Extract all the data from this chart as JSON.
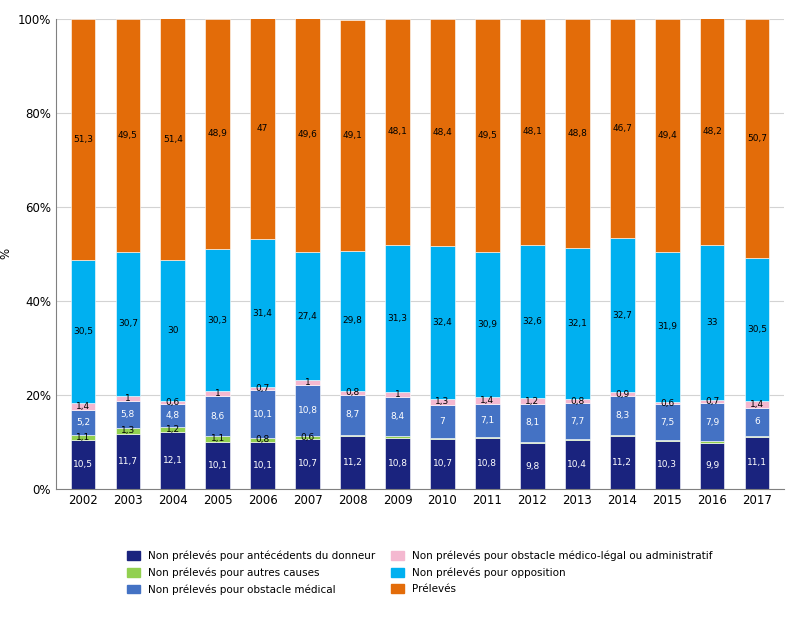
{
  "years": [
    2002,
    2003,
    2004,
    2005,
    2006,
    2007,
    2008,
    2009,
    2010,
    2011,
    2012,
    2013,
    2014,
    2015,
    2016,
    2017
  ],
  "series": {
    "Non prélevés pour antécédents du donneur": [
      10.5,
      11.7,
      12.1,
      10.1,
      10.1,
      10.7,
      11.2,
      10.8,
      10.7,
      10.8,
      9.8,
      10.4,
      11.2,
      10.3,
      9.9,
      11.1
    ],
    "Non prélevés pour autres causes": [
      1.1,
      1.3,
      1.2,
      1.1,
      0.8,
      0.6,
      0.2,
      0.4,
      0.2,
      0.2,
      0.2,
      0.2,
      0.2,
      0.2,
      0.4,
      0.2
    ],
    "Non prélevés pour obstacle médical": [
      5.2,
      5.8,
      4.8,
      8.6,
      10.1,
      10.8,
      8.7,
      8.4,
      7.0,
      7.1,
      8.1,
      7.7,
      8.3,
      7.5,
      7.9,
      6.0
    ],
    "Non prélevés pour obstacle médico-légal ou administratif": [
      1.4,
      1.0,
      0.6,
      1.0,
      0.7,
      1.0,
      0.8,
      1.0,
      1.3,
      1.4,
      1.2,
      0.8,
      0.9,
      0.6,
      0.7,
      1.4
    ],
    "Non prélevés pour opposition": [
      30.5,
      30.7,
      30.0,
      30.3,
      31.4,
      27.4,
      29.8,
      31.3,
      32.4,
      30.9,
      32.6,
      32.1,
      32.7,
      31.9,
      33.0,
      30.5
    ],
    "Prélevés": [
      51.3,
      49.5,
      51.4,
      48.9,
      47.0,
      49.6,
      49.1,
      48.1,
      48.4,
      49.5,
      48.1,
      48.8,
      46.7,
      49.4,
      48.2,
      50.7
    ]
  },
  "colors": {
    "Non prélevés pour antécédents du donneur": "#1A237E",
    "Non prélevés pour autres causes": "#92D050",
    "Non prélevés pour obstacle médical": "#4472C4",
    "Non prélevés pour obstacle médico-légal ou administratif": "#F4B8D0",
    "Non prélevés pour opposition": "#00B0F0",
    "Prélevés": "#E36C09"
  },
  "ylabel": "%",
  "yticks": [
    0,
    20,
    40,
    60,
    80,
    100
  ],
  "yticklabels": [
    "0%",
    "20%",
    "40%",
    "60%",
    "80%",
    "100%"
  ],
  "legend_order": [
    "Non prélevés pour antécédents du donneur",
    "Non prélevés pour autres causes",
    "Non prélevés pour obstacle médical",
    "Non prélevés pour obstacle médico-légal ou administratif",
    "Non prélevés pour opposition",
    "Prélevés"
  ],
  "legend_cols_order": [
    [
      "Non prélevés pour antécédents du donneur",
      "Non prélevés pour autres causes"
    ],
    [
      "Non prélevés pour obstacle médical",
      "Non prélevés pour obstacle médico-légal ou administratif"
    ],
    [
      "Non prélevés pour opposition",
      "Prélevés"
    ]
  ],
  "bar_width": 0.55,
  "label_fontsize": 6.5,
  "axis_fontsize": 8.5,
  "legend_fontsize": 7.5
}
